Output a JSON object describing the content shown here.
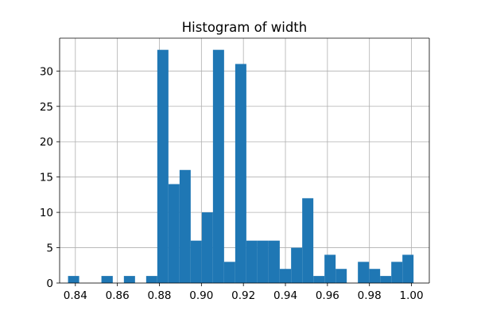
{
  "chart_data": {
    "type": "bar",
    "title": "Histogram of width",
    "xlabel": "",
    "ylabel": "",
    "xlim": [
      0.8325,
      1.0085
    ],
    "ylim": [
      0,
      34.65
    ],
    "x_ticks": [
      0.84,
      0.86,
      0.88,
      0.9,
      0.92,
      0.94,
      0.96,
      0.98,
      1.0
    ],
    "x_tick_labels": [
      "0.84",
      "0.86",
      "0.88",
      "0.90",
      "0.92",
      "0.94",
      "0.96",
      "0.98",
      "1.00"
    ],
    "y_ticks": [
      0,
      5,
      10,
      15,
      20,
      25,
      30
    ],
    "y_tick_labels": [
      "0",
      "5",
      "10",
      "15",
      "20",
      "25",
      "30"
    ],
    "grid": true,
    "color": "#1f77b4",
    "bins": [
      {
        "x0": 0.8365,
        "x1": 0.8418,
        "count": 1
      },
      {
        "x0": 0.8418,
        "x1": 0.8471,
        "count": 0
      },
      {
        "x0": 0.8471,
        "x1": 0.8524,
        "count": 0
      },
      {
        "x0": 0.8524,
        "x1": 0.8578,
        "count": 1
      },
      {
        "x0": 0.8578,
        "x1": 0.8631,
        "count": 0
      },
      {
        "x0": 0.8631,
        "x1": 0.8684,
        "count": 1
      },
      {
        "x0": 0.8684,
        "x1": 0.8737,
        "count": 0
      },
      {
        "x0": 0.8737,
        "x1": 0.879,
        "count": 1
      },
      {
        "x0": 0.879,
        "x1": 0.8843,
        "count": 33
      },
      {
        "x0": 0.8843,
        "x1": 0.8896,
        "count": 14
      },
      {
        "x0": 0.8896,
        "x1": 0.8949,
        "count": 16
      },
      {
        "x0": 0.8949,
        "x1": 0.9002,
        "count": 6
      },
      {
        "x0": 0.9002,
        "x1": 0.9055,
        "count": 10
      },
      {
        "x0": 0.9055,
        "x1": 0.9108,
        "count": 33
      },
      {
        "x0": 0.9108,
        "x1": 0.9161,
        "count": 3
      },
      {
        "x0": 0.9161,
        "x1": 0.9214,
        "count": 31
      },
      {
        "x0": 0.9214,
        "x1": 0.9267,
        "count": 6
      },
      {
        "x0": 0.9267,
        "x1": 0.932,
        "count": 6
      },
      {
        "x0": 0.932,
        "x1": 0.9373,
        "count": 6
      },
      {
        "x0": 0.9373,
        "x1": 0.9427,
        "count": 2
      },
      {
        "x0": 0.9427,
        "x1": 0.948,
        "count": 5
      },
      {
        "x0": 0.948,
        "x1": 0.9533,
        "count": 12
      },
      {
        "x0": 0.9533,
        "x1": 0.9586,
        "count": 1
      },
      {
        "x0": 0.9586,
        "x1": 0.9639,
        "count": 4
      },
      {
        "x0": 0.9639,
        "x1": 0.9692,
        "count": 2
      },
      {
        "x0": 0.9692,
        "x1": 0.9745,
        "count": 0
      },
      {
        "x0": 0.9745,
        "x1": 0.9798,
        "count": 3
      },
      {
        "x0": 0.9798,
        "x1": 0.9851,
        "count": 2
      },
      {
        "x0": 0.9851,
        "x1": 0.9904,
        "count": 1
      },
      {
        "x0": 0.9904,
        "x1": 0.9957,
        "count": 3
      },
      {
        "x0": 0.9957,
        "x1": 1.001,
        "count": 4
      }
    ]
  }
}
